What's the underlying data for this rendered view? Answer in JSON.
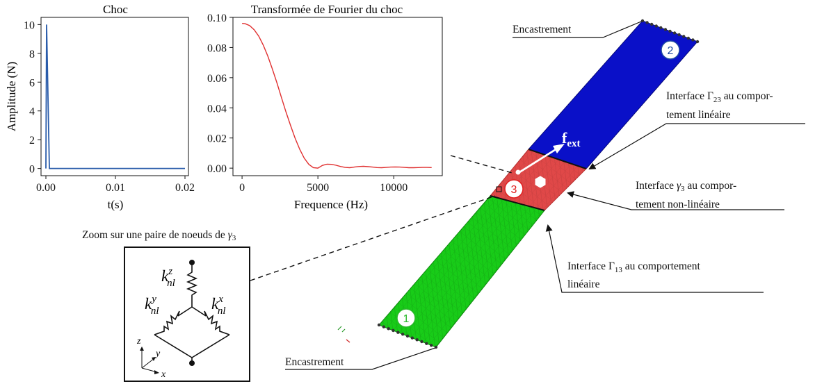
{
  "colors": {
    "blue_beam": "#0a10c8",
    "green_beam": "#18cc18",
    "red_beam": "#e04848",
    "curve_blue": "#2a5caa",
    "curve_red": "#e03030",
    "label_blue": "#1e4aa0",
    "label_green": "#2ab82a",
    "label_red": "#e02020"
  },
  "chart_data": [
    {
      "type": "line",
      "title": "Choc",
      "xlabel": "t(s)",
      "ylabel": "Amplitude (N)",
      "xlim": [
        -0.0007,
        0.0205
      ],
      "ylim": [
        -0.5,
        10.5
      ],
      "xticks": [
        0.0,
        0.01,
        0.02
      ],
      "xtick_labels": [
        "0.00",
        "0.01",
        "0.02"
      ],
      "yticks": [
        0,
        2,
        4,
        6,
        8,
        10
      ],
      "ytick_labels": [
        "0",
        "2",
        "4",
        "6",
        "8",
        "10"
      ],
      "grid": false,
      "x": [
        0.0,
        0.0001,
        0.0005,
        0.02
      ],
      "y": [
        0,
        10,
        0,
        0
      ]
    },
    {
      "type": "line",
      "title": "Transformée de Fourier du choc",
      "xlabel": "Frequence (Hz)",
      "ylabel": "",
      "xlim": [
        -600,
        13200
      ],
      "ylim": [
        -0.005,
        0.1
      ],
      "xticks": [
        0,
        5000,
        10000
      ],
      "xtick_labels": [
        "0",
        "5000",
        "10000"
      ],
      "yticks": [
        0.0,
        0.02,
        0.04,
        0.06,
        0.08,
        0.1
      ],
      "ytick_labels": [
        "0.00",
        "0.02",
        "0.04",
        "0.06",
        "0.08",
        "0.10"
      ],
      "grid": false,
      "x": [
        0,
        200,
        500,
        800,
        1100,
        1400,
        1700,
        2000,
        2300,
        2600,
        2900,
        3200,
        3500,
        3800,
        4100,
        4400,
        4700,
        5000,
        5300,
        5600,
        5900,
        6200,
        6500,
        6800,
        7100,
        7400,
        7700,
        8000,
        8300,
        8600,
        8900,
        9200,
        9500,
        9800,
        10100,
        10400,
        10700,
        11000,
        11300,
        11600,
        11900,
        12200,
        12500
      ],
      "y": [
        0.096,
        0.0958,
        0.0945,
        0.0918,
        0.0875,
        0.0816,
        0.0742,
        0.0657,
        0.0565,
        0.0467,
        0.0372,
        0.0282,
        0.0198,
        0.0125,
        0.0066,
        0.0025,
        0.0003,
        0.0,
        0.0018,
        0.0026,
        0.0025,
        0.0019,
        0.0011,
        0.0005,
        0.0003,
        0.0007,
        0.0011,
        0.0012,
        0.001,
        0.0007,
        0.0004,
        0.0003,
        0.0005,
        0.0007,
        0.0008,
        0.0007,
        0.0005,
        0.0003,
        0.0003,
        0.0004,
        0.0005,
        0.0005,
        0.0004
      ]
    }
  ],
  "diagram": {
    "labels": {
      "encastrement_top": "Encastrement",
      "encastrement_bottom": "Encastrement",
      "fext_main": "f",
      "fext_sub": "ext",
      "node_1": "1",
      "node_2": "2",
      "node_3": "3",
      "gamma23_l1_a": "Interface ",
      "gamma23_l1_sym": "Γ",
      "gamma23_l1_sub": "23",
      "gamma23_l1_b": " au compor-",
      "gamma23_l2": "tement linéaire",
      "gamma3_l1_a": "Interface ",
      "gamma3_l1_sym": "γ",
      "gamma3_l1_sub": "3",
      "gamma3_l1_b": " au compor-",
      "gamma3_l2": "tement non-linéaire",
      "gamma13_l1_a": "Interface ",
      "gamma13_l1_sym": "Γ",
      "gamma13_l1_sub": "13",
      "gamma13_l1_b": " au comportement",
      "gamma13_l2": "linéaire",
      "zoom_title_a": "Zoom sur une paire de noeuds de ",
      "zoom_title_sym": "γ",
      "zoom_title_sub": "3"
    },
    "inset": {
      "k": "k",
      "nl": "nl",
      "sup_z": "z",
      "sup_y": "y",
      "sup_x": "x",
      "axis_z": "z",
      "axis_y": "y",
      "axis_x": "x"
    }
  }
}
